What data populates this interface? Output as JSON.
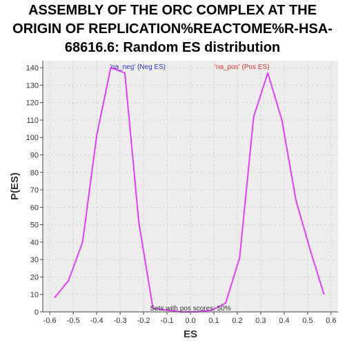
{
  "chart_data": {
    "type": "line",
    "title_lines": [
      "ASSEMBLY OF THE ORC COMPLEX AT THE",
      "ORIGIN OF REPLICATION%REACTOME%R-HSA-",
      "68616.6: Random ES distribution"
    ],
    "xlabel": "ES",
    "ylabel": "P(ES)",
    "xlim": [
      -0.63,
      0.63
    ],
    "ylim": [
      0,
      144
    ],
    "x_ticks": [
      "-0.6",
      "-0.5",
      "-0.4",
      "-0.3",
      "-0.2",
      "-0.1",
      "0.0",
      "0.1",
      "0.2",
      "0.3",
      "0.4",
      "0.5",
      "0.6"
    ],
    "x_tick_values": [
      -0.6,
      -0.5,
      -0.4,
      -0.3,
      -0.2,
      -0.1,
      0.0,
      0.1,
      0.2,
      0.3,
      0.4,
      0.5,
      0.6
    ],
    "y_ticks": [
      "0",
      "10",
      "20",
      "30",
      "40",
      "50",
      "60",
      "70",
      "80",
      "90",
      "100",
      "110",
      "120",
      "130",
      "140"
    ],
    "y_tick_values": [
      0,
      10,
      20,
      30,
      40,
      50,
      60,
      70,
      80,
      90,
      100,
      110,
      120,
      130,
      140
    ],
    "grid": true,
    "series": [
      {
        "color": "#e040fb",
        "x": [
          -0.58,
          -0.52,
          -0.46,
          -0.4,
          -0.34,
          -0.28,
          -0.22,
          -0.16,
          -0.1,
          -0.04,
          0.03,
          0.09,
          0.15,
          0.21,
          0.27,
          0.33,
          0.39,
          0.45,
          0.51,
          0.57
        ],
        "y": [
          8,
          18,
          40,
          101,
          140,
          137,
          51,
          2,
          1,
          0,
          0,
          1,
          5,
          31,
          112,
          137,
          110,
          64,
          36,
          10
        ]
      }
    ],
    "annotations": {
      "neg": "'na_neg' (Neg ES)",
      "pos": "'na_pos' (Pos ES)",
      "bottom": "Sets with pos scores: 50%"
    },
    "colors": {
      "neg_label": "#3333cc",
      "pos_label": "#dd3333",
      "line": "#e040fb",
      "plot_bg": "#eeeeee"
    }
  }
}
